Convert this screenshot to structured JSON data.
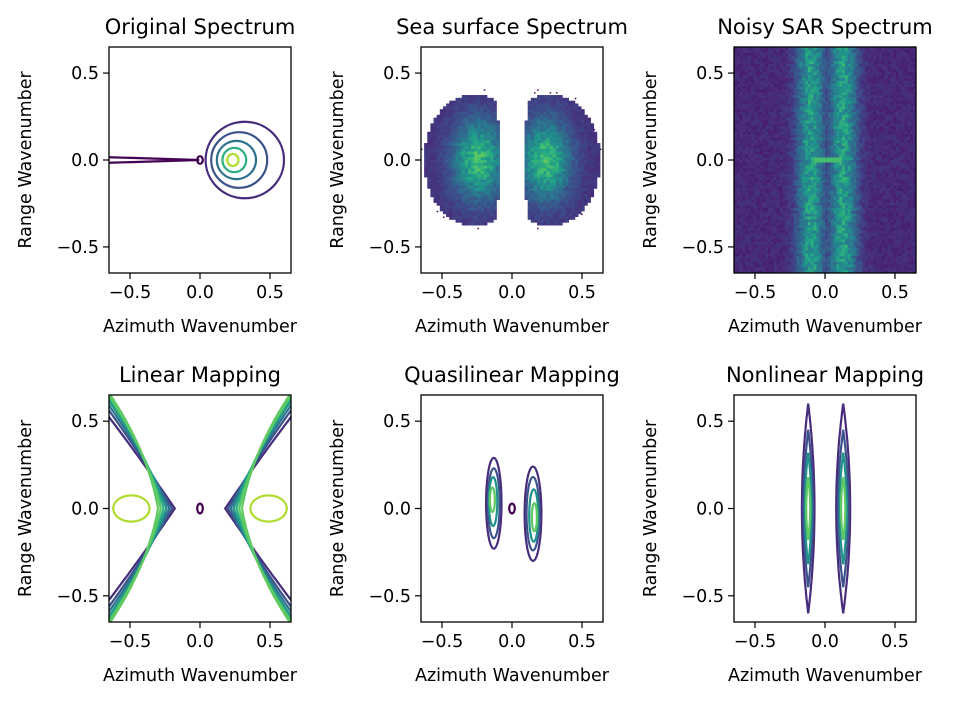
{
  "colors": {
    "viridis": [
      "#440154",
      "#472d7b",
      "#3b528b",
      "#2c728e",
      "#21918c",
      "#28ae80",
      "#5ec962",
      "#addc30",
      "#fde725"
    ],
    "axis": "#000000"
  },
  "chart_data": [
    {
      "type": "contour",
      "title": "Original Spectrum",
      "xlabel": "Azimuth Wavenumber",
      "ylabel": "Range Wavenumber",
      "xlim": [
        -0.65,
        0.65
      ],
      "ylim": [
        -0.65,
        0.65
      ],
      "xticks": [
        -0.5,
        0.0,
        0.5
      ],
      "yticks": [
        -0.5,
        0.0,
        0.5
      ],
      "xticklabels": [
        "−0.5",
        "0.0",
        "0.5"
      ],
      "yticklabels": [
        "−0.5",
        "0.0",
        "0.5"
      ],
      "shapes": [
        {
          "kind": "wedge",
          "x0": -0.65,
          "x1": -0.005,
          "y_halfwidth_at_edge": 0.016,
          "level": 0
        },
        {
          "kind": "ellipse",
          "cx": 0.0,
          "cy": 0.0,
          "rx": 0.02,
          "ry": 0.022,
          "level": 0
        },
        {
          "kind": "ellipse",
          "cx": 0.32,
          "cy": 0.0,
          "rx": 0.28,
          "ry": 0.22,
          "level": 1
        },
        {
          "kind": "ellipse",
          "cx": 0.28,
          "cy": 0.0,
          "rx": 0.2,
          "ry": 0.16,
          "level": 2
        },
        {
          "kind": "ellipse",
          "cx": 0.26,
          "cy": 0.0,
          "rx": 0.14,
          "ry": 0.11,
          "level": 3
        },
        {
          "kind": "ellipse",
          "cx": 0.245,
          "cy": 0.0,
          "rx": 0.085,
          "ry": 0.07,
          "level": 5
        },
        {
          "kind": "ellipse",
          "cx": 0.235,
          "cy": 0.0,
          "rx": 0.04,
          "ry": 0.035,
          "level": 7
        }
      ]
    },
    {
      "type": "heatmap",
      "title": "Sea surface Spectrum",
      "xlabel": "Azimuth Wavenumber",
      "ylabel": "Range Wavenumber",
      "xlim": [
        -0.65,
        0.65
      ],
      "ylim": [
        -0.65,
        0.65
      ],
      "xticks": [
        -0.5,
        0.0,
        0.5
      ],
      "yticks": [
        -0.5,
        0.0,
        0.5
      ],
      "xticklabels": [
        "−0.5",
        "0.0",
        "0.5"
      ],
      "yticklabels": [
        "−0.5",
        "0.0",
        "0.5"
      ],
      "lobes": [
        {
          "cx": -0.27,
          "cy": 0.0,
          "rx": 0.36,
          "ry": 0.38
        },
        {
          "cx": 0.27,
          "cy": 0.0,
          "rx": 0.36,
          "ry": 0.38
        }
      ],
      "inner_cutoff": 0.12,
      "peak_x": 0.24
    },
    {
      "type": "heatmap",
      "title": "Noisy SAR Spectrum",
      "xlabel": "Azimuth Wavenumber",
      "ylabel": "Range Wavenumber",
      "xlim": [
        -0.65,
        0.65
      ],
      "ylim": [
        -0.65,
        0.65
      ],
      "xticks": [
        -0.5,
        0.0,
        0.5
      ],
      "yticks": [
        -0.5,
        0.0,
        0.5
      ],
      "xticklabels": [
        "−0.5",
        "0.0",
        "0.5"
      ],
      "yticklabels": [
        "−0.5",
        "0.0",
        "0.5"
      ],
      "bands": [
        {
          "cx": -0.1,
          "sigma": 0.07
        },
        {
          "cx": 0.13,
          "sigma": 0.07
        }
      ],
      "center_line": {
        "x0": -0.08,
        "x1": 0.12,
        "y": 0.0
      }
    },
    {
      "type": "contour",
      "title": "Linear Mapping",
      "xlabel": "Azimuth Wavenumber",
      "ylabel": "Range Wavenumber",
      "xlim": [
        -0.65,
        0.65
      ],
      "ylim": [
        -0.65,
        0.65
      ],
      "xticks": [
        -0.5,
        0.0,
        0.5
      ],
      "yticks": [
        -0.5,
        0.0,
        0.5
      ],
      "xticklabels": [
        "−0.5",
        "0.0",
        "0.5"
      ],
      "yticklabels": [
        "−0.5",
        "0.0",
        "0.5"
      ],
      "shapes": [
        {
          "kind": "hyperbola",
          "vertex": 0.18,
          "slope": 0.85,
          "level": 1
        },
        {
          "kind": "hyperbola",
          "vertex": 0.2,
          "slope": 0.7,
          "level": 2
        },
        {
          "kind": "hyperbola",
          "vertex": 0.22,
          "slope": 0.58,
          "level": 3
        },
        {
          "kind": "hyperbola",
          "vertex": 0.24,
          "slope": 0.47,
          "level": 4
        },
        {
          "kind": "hyperbola",
          "vertex": 0.26,
          "slope": 0.38,
          "level": 5
        },
        {
          "kind": "hyperbola",
          "vertex": 0.28,
          "slope": 0.3,
          "level": 6
        },
        {
          "kind": "hyperbola",
          "vertex": 0.3,
          "slope": 0.22,
          "level": 6
        },
        {
          "kind": "ellipse",
          "cx": 0.0,
          "cy": 0.0,
          "rx": 0.02,
          "ry": 0.028,
          "level": 0
        },
        {
          "kind": "ellipse",
          "cx": -0.49,
          "cy": 0.0,
          "rx": 0.13,
          "ry": 0.075,
          "level": 7
        },
        {
          "kind": "ellipse",
          "cx": 0.49,
          "cy": 0.0,
          "rx": 0.13,
          "ry": 0.075,
          "level": 7
        }
      ]
    },
    {
      "type": "contour",
      "title": "Quasilinear Mapping",
      "xlabel": "Azimuth Wavenumber",
      "ylabel": "Range Wavenumber",
      "xlim": [
        -0.65,
        0.65
      ],
      "ylim": [
        -0.65,
        0.65
      ],
      "xticks": [
        -0.5,
        0.0,
        0.5
      ],
      "yticks": [
        -0.5,
        0.0,
        0.5
      ],
      "xticklabels": [
        "−0.5",
        "0.0",
        "0.5"
      ],
      "yticklabels": [
        "−0.5",
        "0.0",
        "0.5"
      ],
      "shapes": [
        {
          "kind": "ellipse",
          "cx": -0.13,
          "cy": 0.03,
          "rx": 0.055,
          "ry": 0.26,
          "level": 1
        },
        {
          "kind": "ellipse",
          "cx": -0.13,
          "cy": 0.03,
          "rx": 0.042,
          "ry": 0.2,
          "level": 2
        },
        {
          "kind": "ellipse",
          "cx": -0.135,
          "cy": 0.04,
          "rx": 0.03,
          "ry": 0.14,
          "level": 4
        },
        {
          "kind": "ellipse",
          "cx": -0.14,
          "cy": 0.05,
          "rx": 0.018,
          "ry": 0.07,
          "level": 6
        },
        {
          "kind": "ellipse",
          "cx": 0.15,
          "cy": -0.03,
          "rx": 0.06,
          "ry": 0.27,
          "level": 1
        },
        {
          "kind": "ellipse",
          "cx": 0.15,
          "cy": -0.03,
          "rx": 0.046,
          "ry": 0.21,
          "level": 2
        },
        {
          "kind": "ellipse",
          "cx": 0.155,
          "cy": -0.04,
          "rx": 0.032,
          "ry": 0.15,
          "level": 4
        },
        {
          "kind": "ellipse",
          "cx": 0.16,
          "cy": -0.05,
          "rx": 0.018,
          "ry": 0.08,
          "level": 6
        },
        {
          "kind": "ellipse",
          "cx": 0.0,
          "cy": 0.0,
          "rx": 0.02,
          "ry": 0.028,
          "level": 0
        }
      ]
    },
    {
      "type": "contour",
      "title": "Nonlinear Mapping",
      "xlabel": "Azimuth Wavenumber",
      "ylabel": "Range Wavenumber",
      "xlim": [
        -0.65,
        0.65
      ],
      "ylim": [
        -0.65,
        0.65
      ],
      "xticks": [
        -0.5,
        0.0,
        0.5
      ],
      "yticks": [
        -0.5,
        0.0,
        0.5
      ],
      "xticklabels": [
        "−0.5",
        "0.0",
        "0.5"
      ],
      "yticklabels": [
        "−0.5",
        "0.0",
        "0.5"
      ],
      "shapes": [
        {
          "kind": "lens",
          "cx": -0.12,
          "hw": 0.045,
          "hh": 0.6,
          "level": 1
        },
        {
          "kind": "lens",
          "cx": -0.12,
          "hw": 0.034,
          "hh": 0.45,
          "level": 2
        },
        {
          "kind": "lens",
          "cx": -0.12,
          "hw": 0.024,
          "hh": 0.32,
          "level": 4
        },
        {
          "kind": "lens",
          "cx": -0.12,
          "hw": 0.014,
          "hh": 0.18,
          "level": 6
        },
        {
          "kind": "lens",
          "cx": 0.13,
          "hw": 0.05,
          "hh": 0.6,
          "level": 1
        },
        {
          "kind": "lens",
          "cx": 0.13,
          "hw": 0.038,
          "hh": 0.45,
          "level": 2
        },
        {
          "kind": "lens",
          "cx": 0.13,
          "hw": 0.026,
          "hh": 0.32,
          "level": 4
        },
        {
          "kind": "lens",
          "cx": 0.13,
          "hw": 0.015,
          "hh": 0.18,
          "level": 6
        }
      ]
    }
  ]
}
